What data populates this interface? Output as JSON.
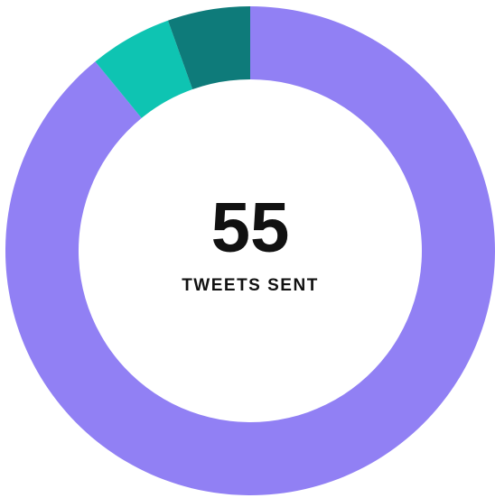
{
  "chart_data": {
    "type": "donut",
    "values": [
      49,
      3,
      3
    ],
    "colors": [
      "#9180f4",
      "#0ec4b2",
      "#0e7b7a"
    ],
    "center_value": 55,
    "center_label": "TWEETS SENT"
  }
}
